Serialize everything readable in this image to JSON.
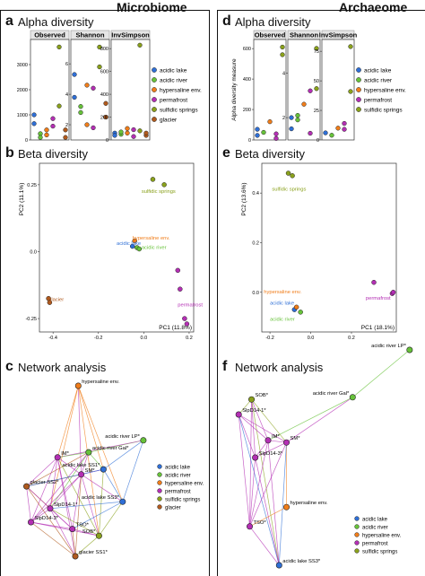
{
  "headers": {
    "left": "Microbiome",
    "right": "Archaeome"
  },
  "colors": {
    "acidic_lake": "#2f6fd6",
    "acidic_river": "#67c23a",
    "hypersaline": "#f07d1a",
    "permafrost": "#b42fb4",
    "sulfidic": "#8aa11c",
    "glacier": "#b05a1e"
  },
  "panels": {
    "a": {
      "letter": "a",
      "title": "Alpha diversity"
    },
    "b": {
      "letter": "b",
      "title": "Beta diversity"
    },
    "c": {
      "letter": "c",
      "title": "Network analysis"
    },
    "d": {
      "letter": "d",
      "title": "Alpha diversity"
    },
    "e": {
      "letter": "e",
      "title": "Beta diversity"
    },
    "f": {
      "letter": "f",
      "title": "Network analysis"
    }
  },
  "chart_data": [
    {
      "id": "a",
      "type": "scatter",
      "ylabel": "",
      "facets": [
        "Observed",
        "Shannon",
        "InvSimpson"
      ],
      "yticks": [
        [
          0,
          1000,
          2000,
          3000
        ],
        [
          2,
          4,
          6
        ],
        [
          0,
          200,
          400,
          600,
          800
        ]
      ],
      "ylims": [
        [
          0,
          4000
        ],
        [
          1,
          7.6
        ],
        [
          0,
          880
        ]
      ],
      "points": [
        [
          [
            1,
            1000,
            "acidic_lake"
          ],
          [
            1,
            650,
            "acidic_lake"
          ],
          [
            2,
            250,
            "acidic_river"
          ],
          [
            2,
            100,
            "acidic_river"
          ],
          [
            3,
            400,
            "hypersaline"
          ],
          [
            3,
            200,
            "hypersaline"
          ],
          [
            4,
            550,
            "permafrost"
          ],
          [
            4,
            850,
            "permafrost"
          ],
          [
            5,
            3700,
            "sulfidic"
          ],
          [
            5,
            1350,
            "sulfidic"
          ],
          [
            6,
            400,
            "glacier"
          ],
          [
            6,
            100,
            "glacier"
          ]
        ],
        [
          [
            1,
            5.3,
            "acidic_lake"
          ],
          [
            1,
            3.8,
            "acidic_lake"
          ],
          [
            2,
            3.2,
            "acidic_river"
          ],
          [
            2,
            2.8,
            "acidic_river"
          ],
          [
            3,
            4.6,
            "hypersaline"
          ],
          [
            3,
            2.0,
            "hypersaline"
          ],
          [
            4,
            4.4,
            "permafrost"
          ],
          [
            4,
            1.8,
            "permafrost"
          ],
          [
            5,
            7.1,
            "sulfidic"
          ],
          [
            5,
            5.8,
            "sulfidic"
          ],
          [
            6,
            3.4,
            "glacier"
          ],
          [
            6,
            2.5,
            "glacier"
          ]
        ],
        [
          [
            1,
            60,
            "acidic_lake"
          ],
          [
            1,
            40,
            "acidic_lake"
          ],
          [
            2,
            50,
            "acidic_river"
          ],
          [
            2,
            70,
            "acidic_river"
          ],
          [
            3,
            100,
            "hypersaline"
          ],
          [
            3,
            60,
            "hypersaline"
          ],
          [
            4,
            30,
            "permafrost"
          ],
          [
            4,
            90,
            "permafrost"
          ],
          [
            5,
            830,
            "sulfidic"
          ],
          [
            5,
            80,
            "sulfidic"
          ],
          [
            6,
            40,
            "glacier"
          ],
          [
            6,
            60,
            "glacier"
          ]
        ]
      ],
      "legend": [
        {
          "key": "acidic_lake",
          "label": "acidic lake"
        },
        {
          "key": "acidic_river",
          "label": "acidic river"
        },
        {
          "key": "hypersaline",
          "label": "hypersaline env."
        },
        {
          "key": "permafrost",
          "label": "permafrost"
        },
        {
          "key": "sulfidic",
          "label": "sulfidic springs"
        },
        {
          "key": "glacier",
          "label": "glacier"
        }
      ]
    },
    {
      "id": "d",
      "type": "scatter",
      "ylabel": "Alpha diversity measure",
      "facets": [
        "Observed",
        "Shannon",
        "InvSimpson"
      ],
      "yticks": [
        [
          0,
          200,
          400,
          600
        ],
        [
          2,
          4
        ],
        [
          0,
          25,
          50,
          75
        ]
      ],
      "ylims": [
        [
          0,
          660
        ],
        [
          1,
          5.5
        ],
        [
          0,
          85
        ]
      ],
      "points": [
        [
          [
            1,
            30,
            "acidic_lake"
          ],
          [
            1,
            70,
            "acidic_lake"
          ],
          [
            2,
            50,
            "acidic_river"
          ],
          [
            3,
            120,
            "hypersaline"
          ],
          [
            4,
            10,
            "permafrost"
          ],
          [
            4,
            40,
            "permafrost"
          ],
          [
            5,
            610,
            "sulfidic"
          ],
          [
            5,
            560,
            "sulfidic"
          ]
        ],
        [
          [
            1,
            2.0,
            "acidic_lake"
          ],
          [
            1,
            1.5,
            "acidic_lake"
          ],
          [
            2,
            2.1,
            "acidic_river"
          ],
          [
            2,
            1.9,
            "acidic_river"
          ],
          [
            3,
            2.6,
            "hypersaline"
          ],
          [
            4,
            3.2,
            "permafrost"
          ],
          [
            4,
            1.3,
            "permafrost"
          ],
          [
            5,
            5.1,
            "sulfidic"
          ],
          [
            5,
            3.3,
            "sulfidic"
          ]
        ],
        [
          [
            1,
            6,
            "acidic_lake"
          ],
          [
            2,
            4,
            "acidic_river"
          ],
          [
            3,
            10,
            "hypersaline"
          ],
          [
            4,
            14,
            "permafrost"
          ],
          [
            4,
            9,
            "permafrost"
          ],
          [
            5,
            79,
            "sulfidic"
          ],
          [
            5,
            41,
            "sulfidic"
          ]
        ]
      ],
      "legend": [
        {
          "key": "acidic_lake",
          "label": "acidic lake"
        },
        {
          "key": "acidic_river",
          "label": "acidic river"
        },
        {
          "key": "hypersaline",
          "label": "hypersaline env."
        },
        {
          "key": "permafrost",
          "label": "permafrost"
        },
        {
          "key": "sulfidic",
          "label": "sulfidic springs"
        }
      ]
    },
    {
      "id": "b",
      "type": "scatter",
      "xlabel": "PC1 (11.8%)",
      "ylabel": "PC2 (11.1%)",
      "xlim": [
        -0.46,
        0.22
      ],
      "ylim": [
        -0.3,
        0.33
      ],
      "xticks": [
        -0.4,
        -0.2,
        0.0,
        0.2
      ],
      "yticks": [
        -0.25,
        0.0,
        0.25
      ],
      "points": [
        [
          0.04,
          0.27,
          "sulfidic"
        ],
        [
          0.09,
          0.25,
          "sulfidic"
        ],
        [
          -0.05,
          0.02,
          "acidic_lake"
        ],
        [
          -0.04,
          0.04,
          "hypersaline"
        ],
        [
          -0.03,
          0.015,
          "acidic_river"
        ],
        [
          -0.02,
          0.01,
          "acidic_river"
        ],
        [
          0.15,
          -0.07,
          "permafrost"
        ],
        [
          0.16,
          -0.14,
          "permafrost"
        ],
        [
          0.18,
          -0.25,
          "permafrost"
        ],
        [
          0.19,
          -0.27,
          "permafrost"
        ],
        [
          -0.42,
          -0.175,
          "glacier"
        ],
        [
          -0.415,
          -0.19,
          "glacier"
        ]
      ],
      "labels": [
        {
          "text": "sulfidic springs",
          "x": -0.01,
          "y": 0.22,
          "key": "sulfidic"
        },
        {
          "text": "hypersaline env.",
          "x": -0.05,
          "y": 0.045,
          "key": "hypersaline"
        },
        {
          "text": "acidic lake",
          "x": -0.12,
          "y": 0.025,
          "key": "acidic_lake"
        },
        {
          "text": "acidic river",
          "x": -0.01,
          "y": 0.01,
          "key": "acidic_river"
        },
        {
          "text": "permafrost",
          "x": 0.15,
          "y": -0.205,
          "key": "permafrost"
        },
        {
          "text": "glacier",
          "x": -0.42,
          "y": -0.185,
          "key": "glacier"
        }
      ]
    },
    {
      "id": "e",
      "type": "scatter",
      "xlabel": "PC1 (18.1%)",
      "ylabel": "PC2 (13.6%)",
      "xlim": [
        -0.24,
        0.42
      ],
      "ylim": [
        -0.16,
        0.52
      ],
      "xticks": [
        -0.2,
        0.0,
        0.2
      ],
      "yticks": [
        0.0,
        0.2,
        0.4
      ],
      "points": [
        [
          -0.11,
          0.48,
          "sulfidic"
        ],
        [
          -0.09,
          0.47,
          "sulfidic"
        ],
        [
          -0.08,
          -0.07,
          "acidic_lake"
        ],
        [
          -0.07,
          -0.06,
          "hypersaline"
        ],
        [
          -0.05,
          -0.08,
          "acidic_river"
        ],
        [
          0.31,
          0.04,
          "permafrost"
        ],
        [
          0.4,
          -0.005,
          "permafrost"
        ],
        [
          0.405,
          0.0,
          "permafrost"
        ]
      ],
      "labels": [
        {
          "text": "sulfidic springs",
          "x": -0.19,
          "y": 0.41,
          "key": "sulfidic"
        },
        {
          "text": "hypersaline env.",
          "x": -0.23,
          "y": -0.005,
          "key": "hypersaline"
        },
        {
          "text": "acidic lake",
          "x": -0.2,
          "y": -0.05,
          "key": "acidic_lake"
        },
        {
          "text": "acidic river",
          "x": -0.2,
          "y": -0.115,
          "key": "acidic_river"
        },
        {
          "text": "permafrost",
          "x": 0.27,
          "y": -0.03,
          "key": "permafrost"
        }
      ]
    },
    {
      "id": "c",
      "type": "network",
      "nodes": [
        {
          "label": "hypersaline env.",
          "key": "hypersaline",
          "x": 0.42,
          "y": 0.0
        },
        {
          "label": "acidic river LP*",
          "key": "acidic_river",
          "x": 0.86,
          "y": 0.32
        },
        {
          "label": "acidic river Gal*",
          "key": "acidic_river",
          "x": 0.49,
          "y": 0.39
        },
        {
          "label": "IM*",
          "key": "permafrost",
          "x": 0.28,
          "y": 0.42
        },
        {
          "label": "SM*",
          "key": "permafrost",
          "x": 0.44,
          "y": 0.52
        },
        {
          "label": "acidic lake SS1*",
          "key": "acidic_lake",
          "x": 0.59,
          "y": 0.49
        },
        {
          "label": "glacier SS2*",
          "key": "glacier",
          "x": 0.07,
          "y": 0.59
        },
        {
          "label": "SlpD14-1*",
          "key": "permafrost",
          "x": 0.23,
          "y": 0.72
        },
        {
          "label": "SlpD14-3*",
          "key": "permafrost",
          "x": 0.1,
          "y": 0.8
        },
        {
          "label": "acidic lake SS3*",
          "key": "acidic_lake",
          "x": 0.72,
          "y": 0.68
        },
        {
          "label": "TSO*",
          "key": "permafrost",
          "x": 0.38,
          "y": 0.84
        },
        {
          "label": "SOB*",
          "key": "sulfidic",
          "x": 0.56,
          "y": 0.88
        },
        {
          "label": "glacier SS1*",
          "key": "glacier",
          "x": 0.4,
          "y": 1.0
        }
      ],
      "edges": [
        [
          0,
          3
        ],
        [
          0,
          4
        ],
        [
          0,
          5
        ],
        [
          0,
          7
        ],
        [
          0,
          9
        ],
        [
          0,
          11
        ],
        [
          1,
          2
        ],
        [
          1,
          5
        ],
        [
          1,
          3
        ],
        [
          1,
          9
        ],
        [
          2,
          3
        ],
        [
          2,
          4
        ],
        [
          2,
          5
        ],
        [
          2,
          6
        ],
        [
          2,
          7
        ],
        [
          2,
          8
        ],
        [
          3,
          4
        ],
        [
          3,
          6
        ],
        [
          3,
          7
        ],
        [
          3,
          8
        ],
        [
          3,
          10
        ],
        [
          3,
          11
        ],
        [
          3,
          12
        ],
        [
          4,
          5
        ],
        [
          4,
          6
        ],
        [
          4,
          7
        ],
        [
          4,
          8
        ],
        [
          4,
          9
        ],
        [
          4,
          10
        ],
        [
          4,
          11
        ],
        [
          4,
          12
        ],
        [
          5,
          6
        ],
        [
          5,
          9
        ],
        [
          5,
          11
        ],
        [
          6,
          7
        ],
        [
          6,
          8
        ],
        [
          6,
          10
        ],
        [
          6,
          12
        ],
        [
          7,
          8
        ],
        [
          7,
          9
        ],
        [
          7,
          10
        ],
        [
          7,
          11
        ],
        [
          7,
          12
        ],
        [
          8,
          10
        ],
        [
          8,
          11
        ],
        [
          8,
          12
        ],
        [
          9,
          10
        ],
        [
          9,
          11
        ],
        [
          10,
          11
        ],
        [
          10,
          12
        ],
        [
          11,
          12
        ]
      ],
      "legend": [
        {
          "key": "acidic_lake",
          "label": "acidic lake"
        },
        {
          "key": "acidic_river",
          "label": "acidic river"
        },
        {
          "key": "hypersaline",
          "label": "hypersaline env."
        },
        {
          "key": "permafrost",
          "label": "permafrost"
        },
        {
          "key": "sulfidic",
          "label": "sulfidic springs"
        },
        {
          "key": "glacier",
          "label": "glacier"
        }
      ]
    },
    {
      "id": "f",
      "type": "network",
      "nodes": [
        {
          "label": "acidic river LP*",
          "key": "acidic_river",
          "x": 0.97,
          "y": 0.0
        },
        {
          "label": "acidic river Gal*",
          "key": "acidic_river",
          "x": 0.66,
          "y": 0.22
        },
        {
          "label": "SOB*",
          "key": "sulfidic",
          "x": 0.11,
          "y": 0.23
        },
        {
          "label": "SlpD14-1*",
          "key": "permafrost",
          "x": 0.04,
          "y": 0.3
        },
        {
          "label": "IM*",
          "key": "permafrost",
          "x": 0.2,
          "y": 0.42
        },
        {
          "label": "SM*",
          "key": "permafrost",
          "x": 0.3,
          "y": 0.43
        },
        {
          "label": "SlpD14-3*",
          "key": "permafrost",
          "x": 0.13,
          "y": 0.5
        },
        {
          "label": "hypersaline env.",
          "key": "hypersaline",
          "x": 0.3,
          "y": 0.73
        },
        {
          "label": "TSO*",
          "key": "permafrost",
          "x": 0.1,
          "y": 0.82
        },
        {
          "label": "acidic lake SS3*",
          "key": "acidic_lake",
          "x": 0.26,
          "y": 1.0
        }
      ],
      "edges": [
        [
          0,
          1
        ],
        [
          1,
          5
        ],
        [
          1,
          4
        ],
        [
          2,
          3
        ],
        [
          2,
          4
        ],
        [
          2,
          5
        ],
        [
          2,
          6
        ],
        [
          2,
          8
        ],
        [
          2,
          9
        ],
        [
          3,
          4
        ],
        [
          3,
          5
        ],
        [
          3,
          6
        ],
        [
          3,
          8
        ],
        [
          3,
          9
        ],
        [
          4,
          5
        ],
        [
          4,
          6
        ],
        [
          4,
          8
        ],
        [
          4,
          9
        ],
        [
          5,
          6
        ],
        [
          5,
          7
        ],
        [
          5,
          8
        ],
        [
          5,
          9
        ],
        [
          6,
          8
        ],
        [
          6,
          9
        ],
        [
          7,
          8
        ],
        [
          8,
          9
        ]
      ],
      "legend": [
        {
          "key": "acidic_lake",
          "label": "acidic lake"
        },
        {
          "key": "acidic_river",
          "label": "acidic river"
        },
        {
          "key": "hypersaline",
          "label": "hypersaline env."
        },
        {
          "key": "permafrost",
          "label": "permafrost"
        },
        {
          "key": "sulfidic",
          "label": "sulfidic springs"
        }
      ]
    }
  ]
}
